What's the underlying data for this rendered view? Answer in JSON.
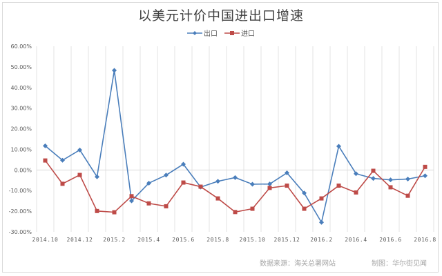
{
  "chart_data": {
    "type": "line",
    "title": "以美元计价中国进出口增速",
    "xlabel": "",
    "ylabel": "",
    "ylim": [
      -0.3,
      0.6
    ],
    "yticks": [
      "60.00%",
      "50.00%",
      "40.00%",
      "30.00%",
      "20.00%",
      "10.00%",
      "0.00%",
      "-10.00%",
      "-20.00%",
      "-30.00%"
    ],
    "grid": true,
    "legend_position": "top",
    "x": [
      "2014.10",
      "2014.11",
      "2014.12",
      "2015.1",
      "2015.2",
      "2015.3",
      "2015.4",
      "2015.5",
      "2015.6",
      "2015.7",
      "2015.8",
      "2015.9",
      "2015.10",
      "2015.11",
      "2015.12",
      "2016.1",
      "2016.2",
      "2016.3",
      "2016.4",
      "2016.5",
      "2016.6",
      "2016.7",
      "2016.8"
    ],
    "xtick_labels": [
      "2014.10",
      "2014.12",
      "2015.2",
      "2015.4",
      "2015.6",
      "2015.8",
      "2015.10",
      "2015.12",
      "2016.2",
      "2016.4",
      "2016.6",
      "2016.8"
    ],
    "series": [
      {
        "name": "出口",
        "color": "#4a7ebb",
        "marker": "diamond",
        "values": [
          0.117,
          0.047,
          0.097,
          -0.033,
          0.483,
          -0.15,
          -0.064,
          -0.025,
          0.028,
          -0.083,
          -0.055,
          -0.037,
          -0.069,
          -0.068,
          -0.014,
          -0.112,
          -0.254,
          0.115,
          -0.018,
          -0.041,
          -0.048,
          -0.044,
          -0.028
        ]
      },
      {
        "name": "进口",
        "color": "#be4b48",
        "marker": "square",
        "values": [
          0.046,
          -0.067,
          -0.024,
          -0.199,
          -0.205,
          -0.127,
          -0.162,
          -0.176,
          -0.061,
          -0.081,
          -0.138,
          -0.204,
          -0.188,
          -0.087,
          -0.076,
          -0.188,
          -0.138,
          -0.076,
          -0.109,
          -0.004,
          -0.084,
          -0.125,
          0.015
        ]
      }
    ]
  },
  "footer": {
    "source": "数据来源：海关总署网站",
    "credit": "制图：华尔街见闻"
  }
}
